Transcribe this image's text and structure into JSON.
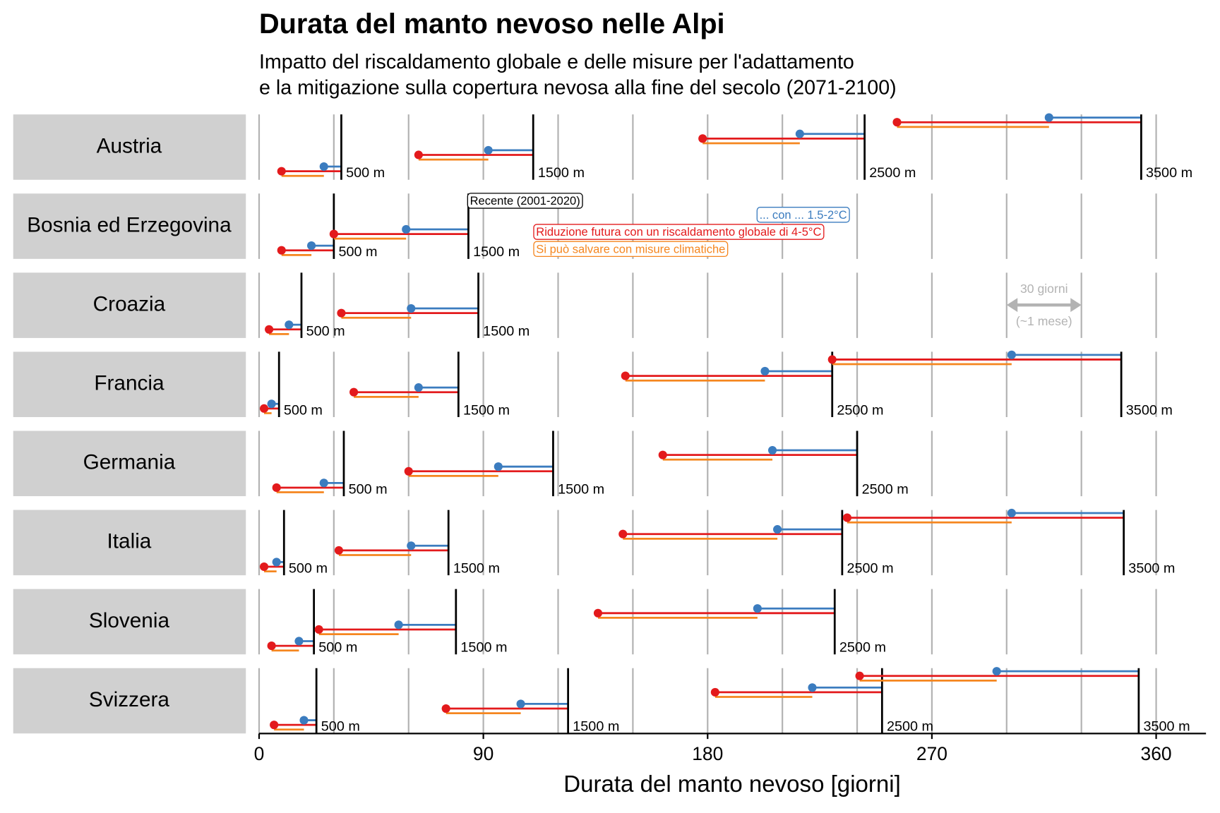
{
  "chart_data": {
    "type": "dumbbell",
    "title": "Durata del manto nevoso nelle Alpi",
    "subtitle": [
      "Impatto del riscaldamento globale e delle misure per l'adattamento",
      "e la mitigazione sulla copertura nevosa alla fine del secolo (2071-2100)"
    ],
    "x_label": "Durata del manto nevoso [giorni]",
    "xlim": [
      0,
      380
    ],
    "xticks": [
      0,
      90,
      180,
      270,
      360
    ],
    "xgrid": [
      0,
      30,
      60,
      90,
      120,
      150,
      180,
      210,
      240,
      270,
      300,
      330,
      360
    ],
    "series": [
      {
        "name": "Recente (2001-2020)",
        "color": "#000000"
      },
      {
        "name": "... con ... 1.5-2°C",
        "color": "#3b7cbf"
      },
      {
        "name": "Riduzione futura con un riscaldamento globale di 4-5°C",
        "color": "#e31a1c"
      },
      {
        "name": "Si può salvare con misure climatiche",
        "color": "#f5861f"
      }
    ],
    "span_annotation": {
      "from": 300,
      "to": 330,
      "label": "30 giorni",
      "sublabel": "(~1 mese)"
    },
    "panels": [
      {
        "name": "Austria",
        "elevations": [
          {
            "elevation": "500 m",
            "recente": 33,
            "con_1_5_2": 26,
            "con_4_5": 9
          },
          {
            "elevation": "1500 m",
            "recente": 110,
            "con_1_5_2": 92,
            "con_4_5": 64
          },
          {
            "elevation": "2500 m",
            "recente": 243,
            "con_1_5_2": 217,
            "con_4_5": 178
          },
          {
            "elevation": "3500 m",
            "recente": 354,
            "con_1_5_2": 317,
            "con_4_5": 256
          }
        ]
      },
      {
        "name": "Bosnia ed Erzegovina",
        "elevations": [
          {
            "elevation": "500 m",
            "recente": 30,
            "con_1_5_2": 21,
            "con_4_5": 9
          },
          {
            "elevation": "1500 m",
            "recente": 84,
            "con_1_5_2": 59,
            "con_4_5": 30
          }
        ]
      },
      {
        "name": "Croazia",
        "elevations": [
          {
            "elevation": "500 m",
            "recente": 17,
            "con_1_5_2": 12,
            "con_4_5": 4
          },
          {
            "elevation": "1500 m",
            "recente": 88,
            "con_1_5_2": 61,
            "con_4_5": 33
          }
        ]
      },
      {
        "name": "Francia",
        "elevations": [
          {
            "elevation": "500 m",
            "recente": 8,
            "con_1_5_2": 5,
            "con_4_5": 2
          },
          {
            "elevation": "1500 m",
            "recente": 80,
            "con_1_5_2": 64,
            "con_4_5": 38
          },
          {
            "elevation": "2500 m",
            "recente": 230,
            "con_1_5_2": 203,
            "con_4_5": 147
          },
          {
            "elevation": "3500 m",
            "recente": 346,
            "con_1_5_2": 302,
            "con_4_5": 230
          }
        ]
      },
      {
        "name": "Germania",
        "elevations": [
          {
            "elevation": "500 m",
            "recente": 34,
            "con_1_5_2": 26,
            "con_4_5": 7
          },
          {
            "elevation": "1500 m",
            "recente": 118,
            "con_1_5_2": 96,
            "con_4_5": 60
          },
          {
            "elevation": "2500 m",
            "recente": 240,
            "con_1_5_2": 206,
            "con_4_5": 162
          }
        ]
      },
      {
        "name": "Italia",
        "elevations": [
          {
            "elevation": "500 m",
            "recente": 10,
            "con_1_5_2": 7,
            "con_4_5": 2
          },
          {
            "elevation": "1500 m",
            "recente": 76,
            "con_1_5_2": 61,
            "con_4_5": 32
          },
          {
            "elevation": "2500 m",
            "recente": 234,
            "con_1_5_2": 208,
            "con_4_5": 146
          },
          {
            "elevation": "3500 m",
            "recente": 347,
            "con_1_5_2": 302,
            "con_4_5": 236
          }
        ]
      },
      {
        "name": "Slovenia",
        "elevations": [
          {
            "elevation": "500 m",
            "recente": 22,
            "con_1_5_2": 16,
            "con_4_5": 5
          },
          {
            "elevation": "1500 m",
            "recente": 79,
            "con_1_5_2": 56,
            "con_4_5": 24
          },
          {
            "elevation": "2500 m",
            "recente": 231,
            "con_1_5_2": 200,
            "con_4_5": 136
          }
        ]
      },
      {
        "name": "Svizzera",
        "elevations": [
          {
            "elevation": "500 m",
            "recente": 23,
            "con_1_5_2": 18,
            "con_4_5": 6
          },
          {
            "elevation": "1500 m",
            "recente": 124,
            "con_1_5_2": 105,
            "con_4_5": 75
          },
          {
            "elevation": "2500 m",
            "recente": 250,
            "con_1_5_2": 222,
            "con_4_5": 183
          },
          {
            "elevation": "3500 m",
            "recente": 353,
            "con_1_5_2": 296,
            "con_4_5": 241
          }
        ]
      }
    ]
  }
}
